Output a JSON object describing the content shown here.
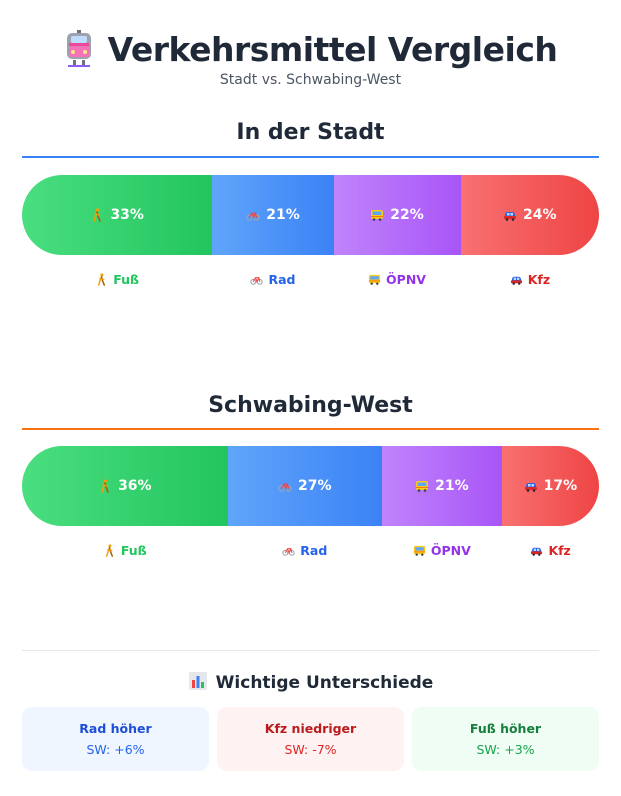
{
  "header": {
    "icon": "tram-icon",
    "title": "Verkehrsmittel Vergleich",
    "subtitle": "Stadt vs. Schwabing-West"
  },
  "colors": {
    "foot": "#22c55e",
    "bike": "#3b82f6",
    "public_transport": "#a855f7",
    "car": "#ef4444",
    "rule_city": "#3b82f6",
    "rule_sw": "#f97316"
  },
  "chart_data": [
    {
      "type": "bar",
      "stacked": true,
      "orientation": "horizontal",
      "title": "In der Stadt",
      "categories": [
        "Fuß",
        "Rad",
        "ÖPNV",
        "Kfz"
      ],
      "values": [
        33,
        21,
        22,
        24
      ],
      "labels": [
        "33%",
        "21%",
        "22%",
        "24%"
      ],
      "icons": [
        "walking-person-icon",
        "bicycle-icon",
        "bus-icon",
        "car-icon"
      ],
      "legend": [
        "Fuß",
        "Rad",
        "ÖPNV",
        "Kfz"
      ]
    },
    {
      "type": "bar",
      "stacked": true,
      "orientation": "horizontal",
      "title": "Schwabing-West",
      "categories": [
        "Fuß",
        "Rad",
        "ÖPNV",
        "Kfz"
      ],
      "values": [
        36,
        27,
        21,
        17
      ],
      "labels": [
        "36%",
        "27%",
        "21%",
        "17%"
      ],
      "icons": [
        "walking-person-icon",
        "bicycle-icon",
        "bus-icon",
        "car-icon"
      ],
      "legend": [
        "Fuß",
        "Rad",
        "ÖPNV",
        "Kfz"
      ]
    }
  ],
  "differences": {
    "icon": "bar-chart-icon",
    "title": "Wichtige Unterschiede",
    "items": [
      {
        "label": "Rad höher",
        "value": "SW: +6%"
      },
      {
        "label": "Kfz niedriger",
        "value": "SW: -7%"
      },
      {
        "label": "Fuß höher",
        "value": "SW: +3%"
      }
    ]
  }
}
